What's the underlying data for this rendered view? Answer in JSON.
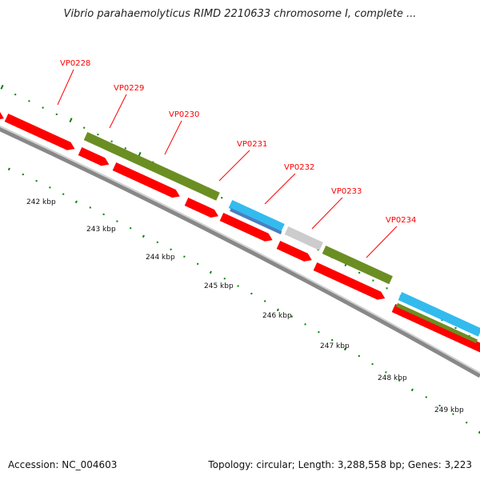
{
  "title": "Vibrio parahaemolyticus RIMD 2210633 chromosome I, complete ...",
  "footer": {
    "accession": "Accession: NC_004603",
    "topology": "Topology: circular; Length: 3,288,558 bp; Genes: 3,223"
  },
  "colors": {
    "forward_cds": "#ff0000",
    "feature_green": "#6b8e23",
    "feature_cyan": "#33bbee",
    "feature_blue": "#4a7fbf",
    "feature_gray": "#cccccc",
    "backbone": "#888888",
    "ticks": "#008000",
    "gene_label": "#ff0000"
  },
  "gene_labels": [
    "VP0228",
    "VP0229",
    "VP0230",
    "VP0231",
    "VP0232",
    "VP0233",
    "VP0234"
  ],
  "scale_labels": [
    "242 kbp",
    "243 kbp",
    "244 kbp",
    "245 kbp",
    "246 kbp",
    "247 kbp",
    "248 kbp",
    "249 kbp"
  ]
}
